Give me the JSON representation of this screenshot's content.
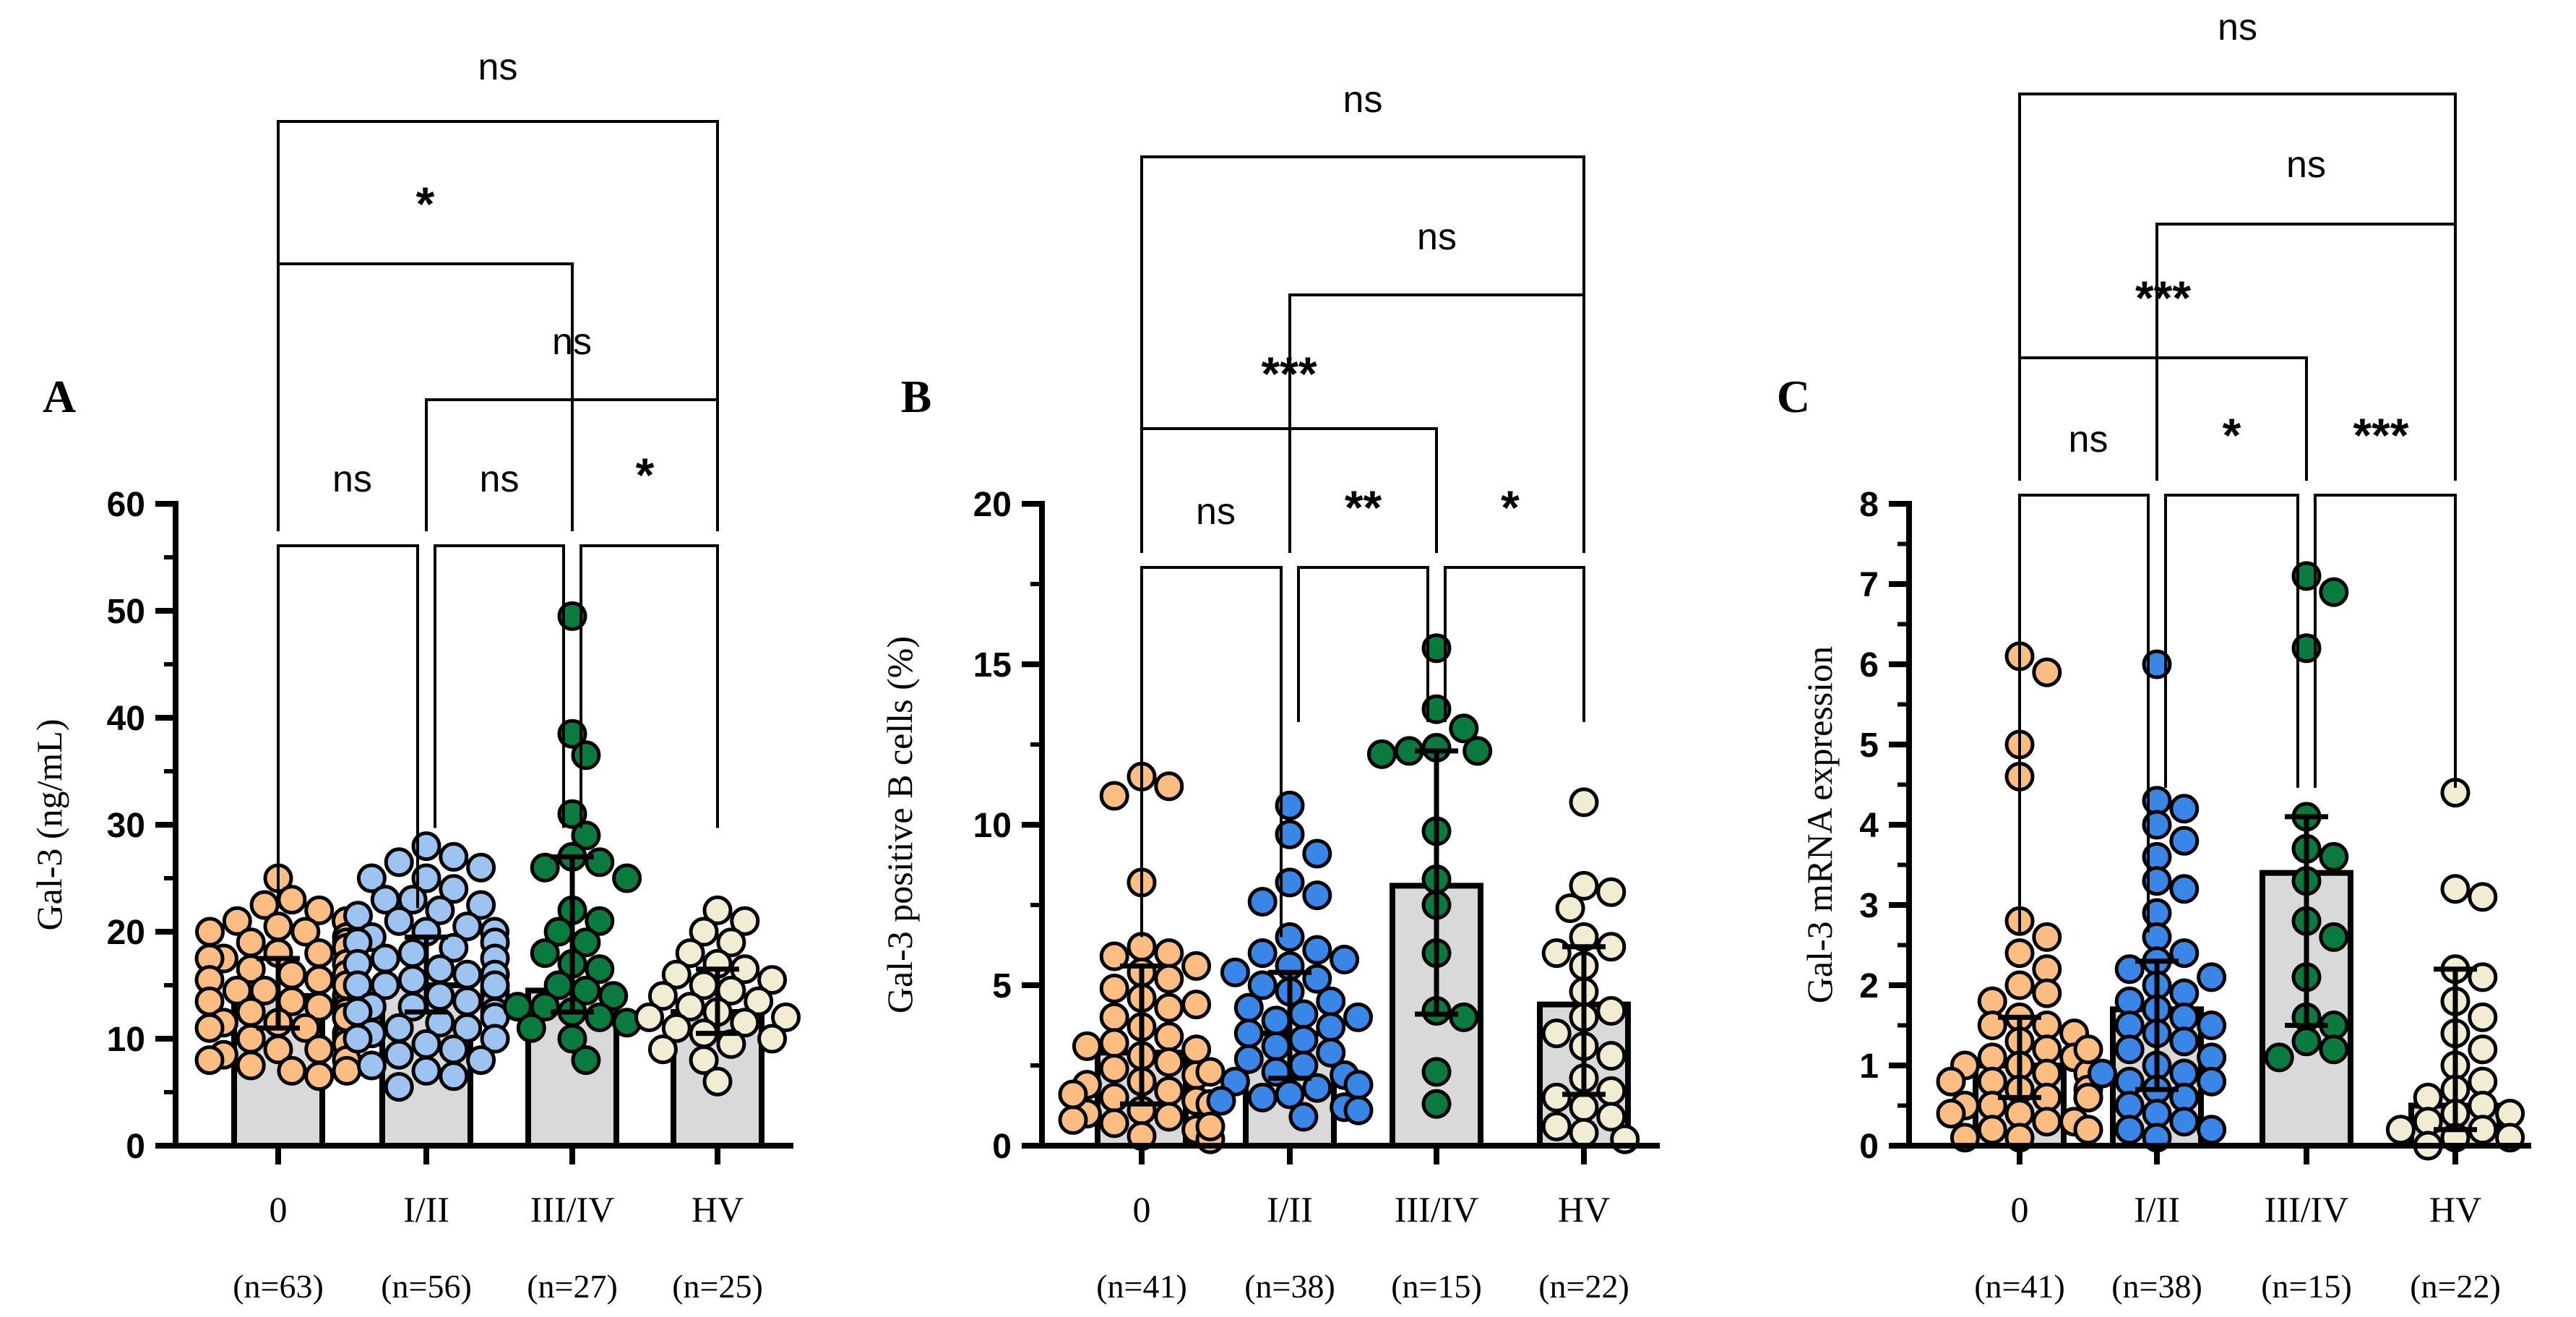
{
  "colors": {
    "bar_fill": "#d9d9d9",
    "bar_stroke": "#000000",
    "group_0": "#fbbd82",
    "group_I_II": "#9dc3f1",
    "group_III_IV": "#0a7a3e",
    "group_HV": "#f2ecd3",
    "panel_B_I_II": "#3a86e6",
    "panel_C_I_II": "#3a86e6"
  },
  "chart_data": [
    {
      "panel": "A",
      "type": "bar",
      "title": "",
      "panel_label": "A",
      "ylabel": "Gal-3 (ng/mL)",
      "xlabel": "",
      "ylim": [
        0,
        60
      ],
      "yticks": [
        0,
        10,
        20,
        30,
        40,
        50,
        60
      ],
      "ytick_labels": [
        "0",
        "10",
        "20",
        "30",
        "40",
        "50",
        "60"
      ],
      "categories": [
        "0",
        "I/II",
        "III/IV",
        "HV"
      ],
      "n_labels": [
        "(n=63)",
        "(n=56)",
        "(n=27)",
        "(n=25)"
      ],
      "values": [
        14,
        15,
        14.5,
        12.5
      ],
      "error_low": [
        11,
        12.5,
        12.5,
        10.5
      ],
      "error_high": [
        17.5,
        19.5,
        27,
        16.5
      ],
      "point_colors": [
        "#fbbd82",
        "#9dc3f1",
        "#0a7a3e",
        "#f2ecd3"
      ],
      "points": [
        [
          25,
          23,
          22.5,
          22,
          21,
          21,
          20.5,
          20,
          20,
          19.5,
          19,
          19,
          18.5,
          18,
          18,
          17.5,
          17.5,
          17,
          17,
          16.5,
          16,
          16,
          15.5,
          15.5,
          15,
          15,
          15,
          14.5,
          14.5,
          14,
          14,
          14,
          13.5,
          13.5,
          13,
          13,
          13,
          12.5,
          12.5,
          12,
          12,
          12,
          11.5,
          11.5,
          11,
          11,
          10.5,
          10.5,
          10,
          10,
          9.5,
          9.5,
          9,
          9,
          8.5,
          8,
          8,
          7.5,
          7,
          7,
          6.5,
          12,
          15
        ],
        [
          28,
          27,
          26.5,
          26,
          25,
          25,
          24,
          23,
          23,
          22.5,
          22,
          21.5,
          21,
          20.5,
          20,
          20,
          19.5,
          19,
          19,
          18.5,
          18,
          17.5,
          17.5,
          17,
          16.5,
          16,
          16,
          15.5,
          15,
          15,
          14.5,
          14,
          14,
          13.5,
          13.5,
          13,
          13,
          12.5,
          12.5,
          12,
          12,
          11.5,
          11,
          11,
          10.5,
          10,
          10,
          9.5,
          9,
          8.5,
          8,
          7.5,
          7,
          6.5,
          5.5,
          15
        ],
        [
          49.5,
          38.5,
          36.5,
          31,
          29,
          27,
          26.5,
          26,
          25,
          22,
          21,
          20,
          19,
          18,
          17,
          16.5,
          15,
          14.5,
          14,
          13,
          13,
          12.5,
          12,
          11.5,
          11,
          10,
          8
        ],
        [
          22,
          21,
          20,
          19,
          18,
          17,
          16.5,
          16,
          15.5,
          15,
          14.5,
          14,
          13.5,
          13,
          12.5,
          12,
          12,
          11.5,
          11,
          10.5,
          10,
          9.5,
          9,
          8,
          6
        ]
      ],
      "annotations": [
        {
          "text": "ns",
          "from": 0,
          "to": 1,
          "level": 0
        },
        {
          "text": "ns",
          "from": 1,
          "to": 2,
          "level": 0
        },
        {
          "text": "*",
          "from": 2,
          "to": 3,
          "level": 0
        },
        {
          "text": "ns",
          "from": 1,
          "to": 3,
          "level": 1
        },
        {
          "text": "*",
          "from": 0,
          "to": 2,
          "level": 2
        },
        {
          "text": "ns",
          "from": 0,
          "to": 3,
          "level": 3
        }
      ]
    },
    {
      "panel": "B",
      "type": "bar",
      "title": "",
      "panel_label": "B",
      "ylabel": "Gal-3 positive B cells (%)",
      "xlabel": "",
      "ylim": [
        0,
        20
      ],
      "yticks": [
        0,
        5,
        10,
        15,
        20
      ],
      "ytick_labels": [
        "0",
        "5",
        "10",
        "15",
        "20"
      ],
      "categories": [
        "0",
        "I/II",
        "III/IV",
        "HV"
      ],
      "n_labels": [
        "(n=41)",
        "(n=38)",
        "(n=15)",
        "(n=22)"
      ],
      "values": [
        2.9,
        3.5,
        8.1,
        4.4
      ],
      "error_low": [
        1.3,
        2.1,
        4.1,
        1.6
      ],
      "error_high": [
        5.6,
        5.4,
        12.3,
        6.2
      ],
      "point_colors": [
        "#fbbd82",
        "#3a86e6",
        "#0a7a3e",
        "#f2ecd3"
      ],
      "points": [
        [
          11.5,
          11.2,
          10.9,
          8.2,
          6.2,
          6.0,
          5.9,
          5.6,
          5.4,
          5.2,
          4.9,
          4.6,
          4.3,
          4.0,
          3.7,
          3.4,
          3.2,
          3.0,
          2.8,
          2.6,
          2.4,
          2.2,
          2.0,
          1.9,
          1.7,
          1.5,
          1.4,
          1.3,
          1.1,
          1.0,
          0.9,
          0.8,
          0.7,
          0.5,
          0.3,
          0.2,
          3.1,
          2.3,
          1.6,
          4.4,
          0.6
        ],
        [
          10.6,
          9.7,
          9.1,
          8.2,
          7.8,
          7.6,
          6.5,
          6.1,
          6.0,
          5.8,
          5.6,
          5.4,
          5.2,
          5.0,
          4.8,
          4.5,
          4.3,
          4.1,
          3.9,
          3.7,
          3.5,
          3.3,
          3.1,
          2.9,
          2.7,
          2.5,
          2.3,
          2.2,
          2.0,
          1.9,
          1.8,
          1.6,
          1.5,
          1.4,
          1.2,
          1.1,
          0.9,
          4.0
        ],
        [
          15.5,
          13.6,
          13.0,
          12.4,
          12.3,
          12.3,
          12.2,
          9.8,
          8.3,
          7.5,
          6.0,
          4.2,
          4.0,
          2.3,
          1.3
        ],
        [
          10.7,
          8.1,
          7.9,
          7.4,
          6.5,
          6.2,
          6.0,
          5.6,
          4.8,
          4.2,
          4.0,
          3.5,
          3.1,
          2.8,
          2.1,
          1.7,
          1.5,
          1.2,
          0.9,
          0.6,
          0.4,
          0.2
        ]
      ],
      "annotations": [
        {
          "text": "ns",
          "from": 0,
          "to": 1,
          "level": 0
        },
        {
          "text": "**",
          "from": 1,
          "to": 2,
          "level": 0
        },
        {
          "text": "*",
          "from": 2,
          "to": 3,
          "level": 0
        },
        {
          "text": "***",
          "from": 0,
          "to": 2,
          "level": 1
        },
        {
          "text": "ns",
          "from": 1,
          "to": 3,
          "level": 2
        },
        {
          "text": "ns",
          "from": 0,
          "to": 3,
          "level": 3
        }
      ]
    },
    {
      "panel": "C",
      "type": "bar",
      "title": "",
      "panel_label": "C",
      "ylabel": "Gal-3 mRNA expression",
      "xlabel": "",
      "ylim": [
        0,
        8
      ],
      "yticks": [
        0,
        1,
        2,
        3,
        4,
        5,
        6,
        7,
        8
      ],
      "ytick_labels": [
        "0",
        "1",
        "2",
        "3",
        "4",
        "5",
        "6",
        "7",
        "8"
      ],
      "categories": [
        "0",
        "I/II",
        "III/IV",
        "HV"
      ],
      "n_labels": [
        "(n=41)",
        "(n=38)",
        "(n=15)",
        "(n=22)"
      ],
      "values": [
        1.0,
        1.7,
        3.4,
        0.5
      ],
      "error_low": [
        0.6,
        0.7,
        1.5,
        0.2
      ],
      "error_high": [
        1.6,
        2.3,
        4.1,
        2.2
      ],
      "point_colors": [
        "#fbbd82",
        "#3a86e6",
        "#0a7a3e",
        "#f2ecd3"
      ],
      "points": [
        [
          6.1,
          5.9,
          5.0,
          4.6,
          2.8,
          2.6,
          2.4,
          2.2,
          2.0,
          1.9,
          1.8,
          1.6,
          1.5,
          1.5,
          1.4,
          1.3,
          1.2,
          1.1,
          1.1,
          1.0,
          1.0,
          0.9,
          0.9,
          0.8,
          0.8,
          0.7,
          0.7,
          0.6,
          0.6,
          0.5,
          0.5,
          0.4,
          0.4,
          0.3,
          0.3,
          0.2,
          0.2,
          0.1,
          0.1,
          1.2,
          0.6
        ],
        [
          6.0,
          4.3,
          4.2,
          4.0,
          3.8,
          3.6,
          3.3,
          3.2,
          2.9,
          2.6,
          2.4,
          2.3,
          2.2,
          2.0,
          1.9,
          1.8,
          1.7,
          1.6,
          1.5,
          1.4,
          1.3,
          1.2,
          1.0,
          0.9,
          0.8,
          0.7,
          0.6,
          0.5,
          0.4,
          0.3,
          0.2,
          0.1,
          1.1,
          2.1,
          0.9,
          1.5,
          0.2,
          0.8
        ],
        [
          7.1,
          6.9,
          6.2,
          4.1,
          3.7,
          3.6,
          3.3,
          2.8,
          2.6,
          2.1,
          1.6,
          1.5,
          1.3,
          1.2,
          1.1
        ],
        [
          4.4,
          3.2,
          3.1,
          2.2,
          2.1,
          1.8,
          1.6,
          1.4,
          1.2,
          1.0,
          0.8,
          0.7,
          0.6,
          0.5,
          0.4,
          0.4,
          0.3,
          0.2,
          0.2,
          0.1,
          0.1,
          0.0
        ]
      ],
      "annotations": [
        {
          "text": "ns",
          "from": 0,
          "to": 1,
          "level": 0
        },
        {
          "text": "*",
          "from": 1,
          "to": 2,
          "level": 0
        },
        {
          "text": "***",
          "from": 2,
          "to": 3,
          "level": 0
        },
        {
          "text": "***",
          "from": 0,
          "to": 2,
          "level": 1
        },
        {
          "text": "ns",
          "from": 1,
          "to": 3,
          "level": 2
        },
        {
          "text": "ns",
          "from": 0,
          "to": 3,
          "level": 3
        }
      ]
    }
  ]
}
